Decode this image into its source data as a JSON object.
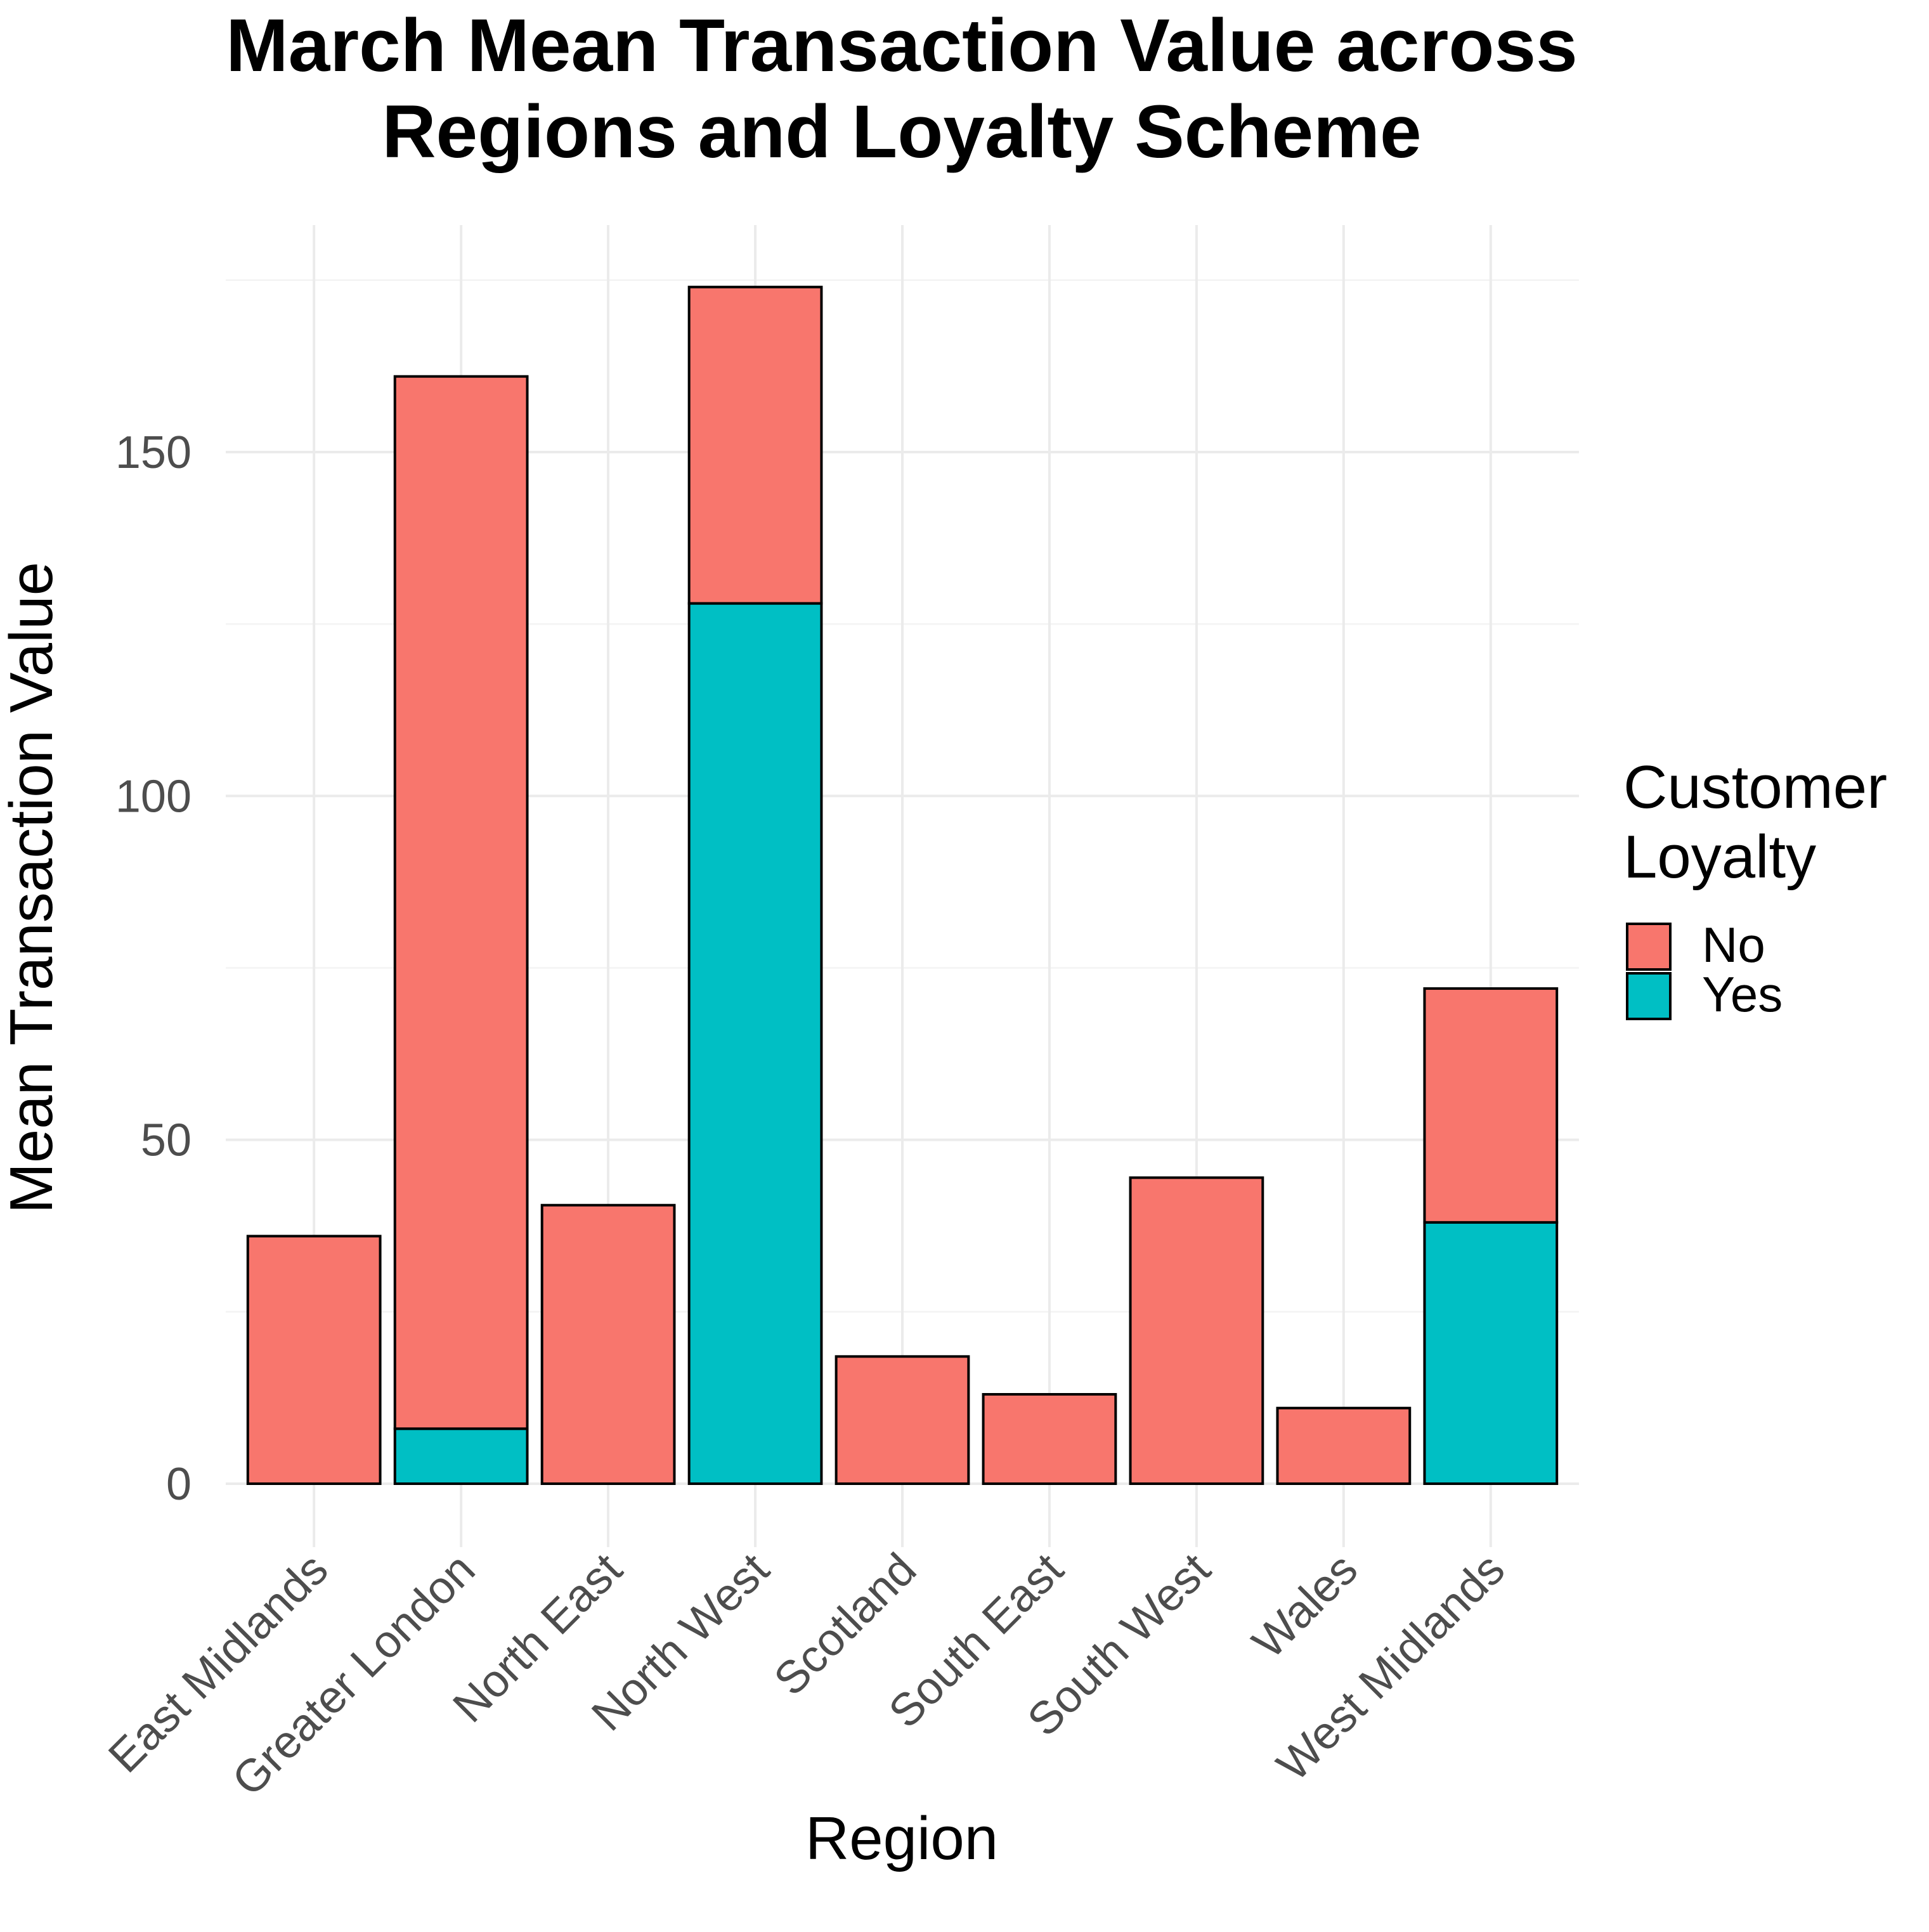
{
  "chart_data": {
    "type": "bar",
    "stacked": true,
    "title_lines": [
      "March Mean Transaction Value across",
      "Regions and Loyalty Scheme"
    ],
    "xlabel": "Region",
    "ylabel": "Mean Transaction Value",
    "ylim": [
      0,
      175
    ],
    "yticks": [
      0,
      50,
      100,
      150
    ],
    "grid": true,
    "legend": {
      "title_lines": [
        "Customer",
        "Loyalty"
      ],
      "placement": "right",
      "entries": [
        {
          "label": "No",
          "color": "#F8766D"
        },
        {
          "label": "Yes",
          "color": "#00BFC4"
        }
      ]
    },
    "categories": [
      "East Midlands",
      "Greater London",
      "North East",
      "North West",
      "Scotland",
      "South East",
      "South West",
      "Wales",
      "West Midlands"
    ],
    "series": [
      {
        "name": "Yes",
        "color": "#00BFC4",
        "values": [
          0,
          8,
          0,
          128,
          0,
          0,
          0,
          0,
          38
        ]
      },
      {
        "name": "No",
        "color": "#F8766D",
        "values": [
          36,
          153,
          40.5,
          46,
          18.5,
          13,
          44.5,
          11,
          34
        ]
      }
    ]
  }
}
